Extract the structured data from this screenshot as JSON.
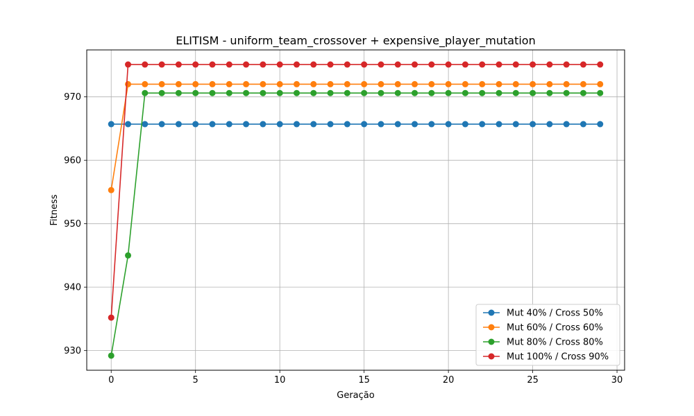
{
  "chart_data": {
    "type": "line",
    "title": "ELITISM - uniform_team_crossover + expensive_player_mutation",
    "xlabel": "Geração",
    "ylabel": "Fitness",
    "xlim": [
      -1.45,
      30.45
    ],
    "ylim": [
      926.9,
      977.4
    ],
    "xticks": [
      0,
      5,
      10,
      15,
      20,
      25,
      30
    ],
    "yticks": [
      930,
      940,
      950,
      960,
      970
    ],
    "grid": true,
    "legend_position": "bottom-right",
    "x": [
      0,
      1,
      2,
      3,
      4,
      5,
      6,
      7,
      8,
      9,
      10,
      11,
      12,
      13,
      14,
      15,
      16,
      17,
      18,
      19,
      20,
      21,
      22,
      23,
      24,
      25,
      26,
      27,
      28,
      29
    ],
    "series": [
      {
        "name": "Mut 40% / Cross 50%",
        "color": "#1f77b4",
        "values": [
          965.7,
          965.7,
          965.7,
          965.7,
          965.7,
          965.7,
          965.7,
          965.7,
          965.7,
          965.7,
          965.7,
          965.7,
          965.7,
          965.7,
          965.7,
          965.7,
          965.7,
          965.7,
          965.7,
          965.7,
          965.7,
          965.7,
          965.7,
          965.7,
          965.7,
          965.7,
          965.7,
          965.7,
          965.7,
          965.7
        ]
      },
      {
        "name": "Mut 60% / Cross 60%",
        "color": "#ff7f0e",
        "values": [
          955.3,
          972.0,
          972.0,
          972.0,
          972.0,
          972.0,
          972.0,
          972.0,
          972.0,
          972.0,
          972.0,
          972.0,
          972.0,
          972.0,
          972.0,
          972.0,
          972.0,
          972.0,
          972.0,
          972.0,
          972.0,
          972.0,
          972.0,
          972.0,
          972.0,
          972.0,
          972.0,
          972.0,
          972.0,
          972.0
        ]
      },
      {
        "name": "Mut 80% / Cross 80%",
        "color": "#2ca02c",
        "values": [
          929.2,
          945.0,
          970.6,
          970.6,
          970.6,
          970.6,
          970.6,
          970.6,
          970.6,
          970.6,
          970.6,
          970.6,
          970.6,
          970.6,
          970.6,
          970.6,
          970.6,
          970.6,
          970.6,
          970.6,
          970.6,
          970.6,
          970.6,
          970.6,
          970.6,
          970.6,
          970.6,
          970.6,
          970.6,
          970.6
        ]
      },
      {
        "name": "Mut 100% / Cross 90%",
        "color": "#d62728",
        "values": [
          935.2,
          975.1,
          975.1,
          975.1,
          975.1,
          975.1,
          975.1,
          975.1,
          975.1,
          975.1,
          975.1,
          975.1,
          975.1,
          975.1,
          975.1,
          975.1,
          975.1,
          975.1,
          975.1,
          975.1,
          975.1,
          975.1,
          975.1,
          975.1,
          975.1,
          975.1,
          975.1,
          975.1,
          975.1,
          975.1
        ]
      }
    ]
  }
}
